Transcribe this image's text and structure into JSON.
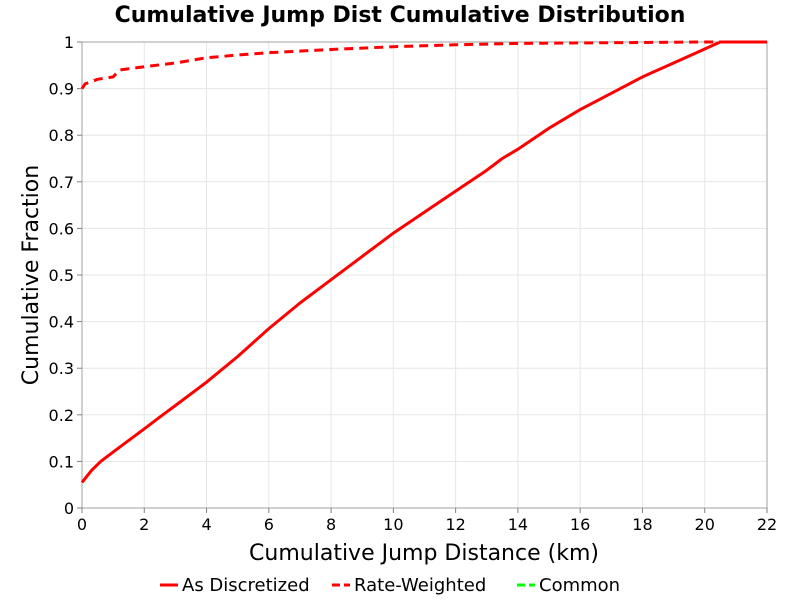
{
  "chart_data": {
    "type": "line",
    "title": "Cumulative Jump Dist Cumulative Distribution",
    "xlabel": "Cumulative Jump Distance (km)",
    "ylabel": "Cumulative Fraction",
    "xlim": [
      0,
      22
    ],
    "ylim": [
      0,
      1
    ],
    "xticks": [
      0,
      2,
      4,
      6,
      8,
      10,
      12,
      14,
      16,
      18,
      20,
      22
    ],
    "yticks": [
      0,
      0.1,
      0.2,
      0.3,
      0.4,
      0.5,
      0.6,
      0.7,
      0.8,
      0.9,
      1
    ],
    "ytick_labels": [
      "0",
      "0.1",
      "0.2",
      "0.3",
      "0.4",
      "0.5",
      "0.6",
      "0.7",
      "0.8",
      "0.9",
      "1"
    ],
    "grid": true,
    "legend_position": "bottom",
    "series": [
      {
        "name": "As Discretized",
        "color": "#ff0000",
        "dash": "solid",
        "x": [
          0,
          0.3,
          0.6,
          1,
          1.5,
          2,
          2.5,
          3,
          4,
          5,
          6,
          7,
          8,
          9,
          10,
          11,
          12,
          13,
          13.5,
          14,
          15,
          16,
          17,
          18,
          19,
          20,
          20.5,
          21,
          22
        ],
        "y": [
          0.055,
          0.08,
          0.1,
          0.12,
          0.145,
          0.17,
          0.195,
          0.22,
          0.27,
          0.325,
          0.385,
          0.44,
          0.49,
          0.54,
          0.59,
          0.635,
          0.68,
          0.725,
          0.75,
          0.77,
          0.815,
          0.855,
          0.89,
          0.925,
          0.955,
          0.985,
          1.0,
          1.0,
          1.0
        ]
      },
      {
        "name": "Rate-Weighted",
        "color": "#ff0000",
        "dash": "dashed",
        "x": [
          0,
          0.1,
          0.3,
          0.5,
          1.0,
          1.2,
          2,
          3,
          4,
          5,
          6,
          8,
          10,
          12,
          14,
          16,
          18,
          20,
          22
        ],
        "y": [
          0.9,
          0.91,
          0.915,
          0.92,
          0.925,
          0.94,
          0.947,
          0.955,
          0.966,
          0.972,
          0.977,
          0.984,
          0.99,
          0.994,
          0.997,
          0.998,
          0.999,
          1.0,
          1.0
        ]
      },
      {
        "name": "Common",
        "color": "#00ff00",
        "dash": "dashed",
        "x": [],
        "y": []
      }
    ]
  }
}
